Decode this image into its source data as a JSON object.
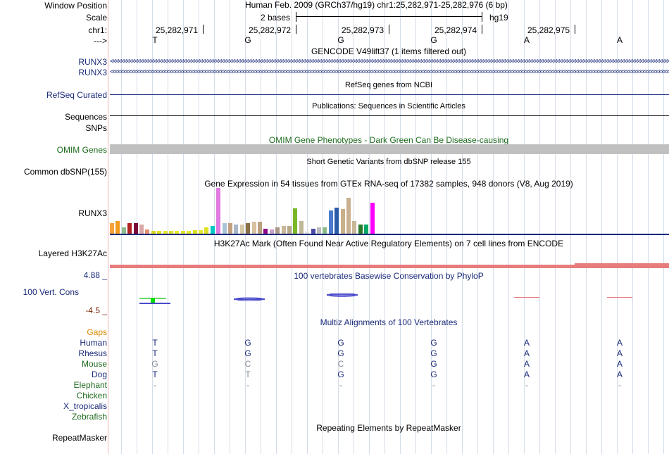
{
  "header": {
    "labels": {
      "window_position": "Window Position",
      "scale": "Scale",
      "chrom": "chr1:",
      "arrow": "--->"
    },
    "position_text": "Human Feb. 2009 (GRCh37/hg19)   chr1:25,282,971-25,282,976 (6 bp)",
    "scale_text": "2 bases",
    "assembly": "hg19",
    "coordinates": [
      "25,282,971",
      "25,282,972",
      "25,282,973",
      "25,282,974",
      "25,282,975"
    ],
    "bases": [
      "T",
      "G",
      "G",
      "G",
      "A",
      "A"
    ]
  },
  "tracks": {
    "gencode": {
      "title": "GENCODE V49lift37 (1 items filtered out)",
      "items": [
        "RUNX3",
        "RUNX3"
      ]
    },
    "refseq": {
      "title": "RefSeq genes from NCBI",
      "label": "RefSeq Curated"
    },
    "publications": {
      "title": "Publications: Sequences in Scientific Articles",
      "label": "Sequences"
    },
    "snps": {
      "label": "SNPs"
    },
    "omim": {
      "title": "OMIM Gene Phenotypes - Dark Green Can Be Disease-causing",
      "label": "OMIM Genes"
    },
    "dbsnp": {
      "title": "Short Genetic Variants from dbSNP release 155",
      "label": "Common dbSNP(155)"
    },
    "gtex": {
      "title": "Gene Expression in 54 tissues from GTEx RNA-seq of 17382 samples, 948 donors (V8, Aug 2019)",
      "label": "RUNX3"
    },
    "h3k27ac": {
      "title": "H3K27Ac Mark (Often Found Near Active Regulatory Elements) on 7 cell lines from ENCODE",
      "label": "Layered H3K27Ac"
    },
    "phylop": {
      "title": "100 vertebrates Basewise Conservation by PhyloP",
      "label": "100 Vert. Cons",
      "max": "4.88 _",
      "min": "-4.5 _"
    },
    "multiz": {
      "title": "Multiz Alignments of 100 Vertebrates",
      "gaps_label": "Gaps",
      "species": [
        {
          "name": "Human",
          "bases": [
            "T",
            "G",
            "G",
            "G",
            "A",
            "A"
          ]
        },
        {
          "name": "Rhesus",
          "bases": [
            "T",
            "G",
            "G",
            "G",
            "A",
            "A"
          ]
        },
        {
          "name": "Mouse",
          "bases": [
            "G",
            "C",
            "C",
            "G",
            "A",
            "A"
          ]
        },
        {
          "name": "Dog",
          "bases": [
            "T",
            "T",
            "G",
            "G",
            "A",
            "A"
          ]
        },
        {
          "name": "Elephant",
          "bases": [
            "-",
            "-",
            "-",
            "-",
            "-",
            "-"
          ]
        },
        {
          "name": "Chicken",
          "bases": []
        },
        {
          "name": "X_tropicalis",
          "bases": []
        },
        {
          "name": "Zebrafish",
          "bases": []
        }
      ]
    },
    "repeatmasker": {
      "title": "Repeating Elements by RepeatMasker",
      "label": "RepeatMasker"
    }
  },
  "colors": {
    "label_navy": "#1a2a7a",
    "omim_green": "#1e6b1e",
    "gaps_orange": "#d98a00",
    "phylop_min": "#7a2a0a",
    "omim_bar": "#c0c0c0",
    "h3k27ac_bar": "#e87c7c",
    "mismatch": "#8a8a9a"
  },
  "gtex_values": [
    {
      "c": "#f5a23a",
      "v": 0.23
    },
    {
      "c": "#f29c1e",
      "v": 0.28
    },
    {
      "c": "#8fbc8f",
      "v": 0.13
    },
    {
      "c": "#b22222",
      "v": 0.23
    },
    {
      "c": "#7a0a3a",
      "v": 0.23
    },
    {
      "c": "#d8a8a8",
      "v": 0.2
    },
    {
      "c": "#e09070",
      "v": 0.09
    },
    {
      "c": "#d8d818",
      "v": 0.06
    },
    {
      "c": "#e0e020",
      "v": 0.06
    },
    {
      "c": "#e8e830",
      "v": 0.06
    },
    {
      "c": "#e0e028",
      "v": 0.06
    },
    {
      "c": "#e8e828",
      "v": 0.06
    },
    {
      "c": "#e0e030",
      "v": 0.06
    },
    {
      "c": "#e8e820",
      "v": 0.06
    },
    {
      "c": "#e0e020",
      "v": 0.08
    },
    {
      "c": "#e8e830",
      "v": 0.08
    },
    {
      "c": "#e0e028",
      "v": 0.13
    },
    {
      "c": "#00c8c8",
      "v": 0.16
    },
    {
      "c": "#e07ae0",
      "v": 0.98
    },
    {
      "c": "#aac4d8",
      "v": 0.23
    },
    {
      "c": "#c0a080",
      "v": 0.22
    },
    {
      "c": "#a8b8c8",
      "v": 0.2
    },
    {
      "c": "#d8c8a8",
      "v": 0.19
    },
    {
      "c": "#8b6f47",
      "v": 0.22
    },
    {
      "c": "#d8c0a0",
      "v": 0.26
    },
    {
      "c": "#b8a080",
      "v": 0.26
    },
    {
      "c": "#8b0a8b",
      "v": 0.11
    },
    {
      "c": "#c8a0c8",
      "v": 0.09
    },
    {
      "c": "#a89888",
      "v": 0.14
    },
    {
      "c": "#c8b898",
      "v": 0.16
    },
    {
      "c": "#b8a888",
      "v": 0.16
    },
    {
      "c": "#7ab828",
      "v": 0.55
    },
    {
      "c": "#c0b898",
      "v": 0.28
    },
    {
      "c": "#e0e0e0",
      "v": 0.05
    },
    {
      "c": "#4a4aaa",
      "v": 0.11
    },
    {
      "c": "#bbbbbb",
      "v": 0.13
    },
    {
      "c": "#88bb88",
      "v": 0.13
    },
    {
      "c": "#4a7acc",
      "v": 0.5
    },
    {
      "c": "#2a5aa8",
      "v": 0.56
    },
    {
      "c": "#c8b088",
      "v": 0.53
    },
    {
      "c": "#c8b090",
      "v": 0.77
    },
    {
      "c": "#c8b898",
      "v": 0.28
    },
    {
      "c": "#2a7a2a",
      "v": 0.2
    },
    {
      "c": "#00a868",
      "v": 0.19
    },
    {
      "c": "#ff00ff",
      "v": 0.66
    }
  ]
}
